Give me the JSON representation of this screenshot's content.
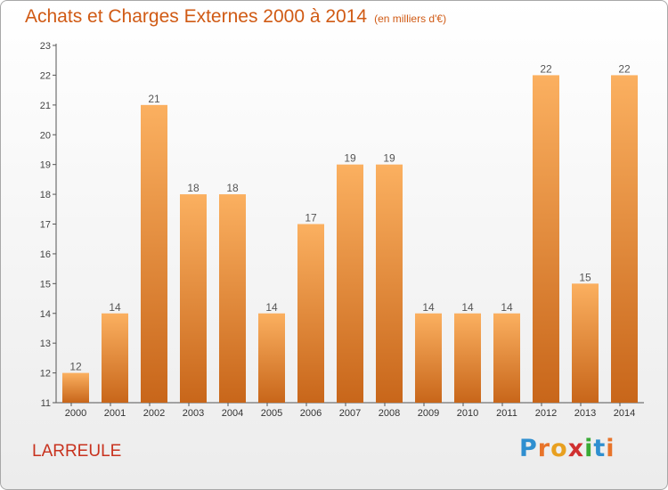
{
  "title": "Achats et Charges Externes 2000 à 2014",
  "subtitle": "(en milliers d'€)",
  "commune": "LARREULE",
  "logo": {
    "letters": [
      "P",
      "r",
      "o",
      "x",
      "i",
      "t",
      "i"
    ],
    "colors": [
      "#2f8fd0",
      "#e8742a",
      "#e8a020",
      "#d03030",
      "#3aaa35",
      "#2f8fd0",
      "#e8742a"
    ]
  },
  "colors": {
    "bar_light": "#fbb060",
    "bar_dark": "#c8661a",
    "title": "#d05a14",
    "axis": "#555555"
  },
  "chart_data": {
    "type": "bar",
    "categories": [
      "2000",
      "2001",
      "2002",
      "2003",
      "2004",
      "2005",
      "2006",
      "2007",
      "2008",
      "2009",
      "2010",
      "2011",
      "2012",
      "2013",
      "2014"
    ],
    "values": [
      12,
      14,
      21,
      18,
      18,
      14,
      17,
      19,
      19,
      14,
      14,
      14,
      22,
      15,
      22
    ],
    "ylim": [
      11,
      23
    ],
    "yticks": [
      11,
      12,
      13,
      14,
      15,
      16,
      17,
      18,
      19,
      20,
      21,
      22,
      23
    ],
    "grid": false,
    "data_labels": true
  }
}
